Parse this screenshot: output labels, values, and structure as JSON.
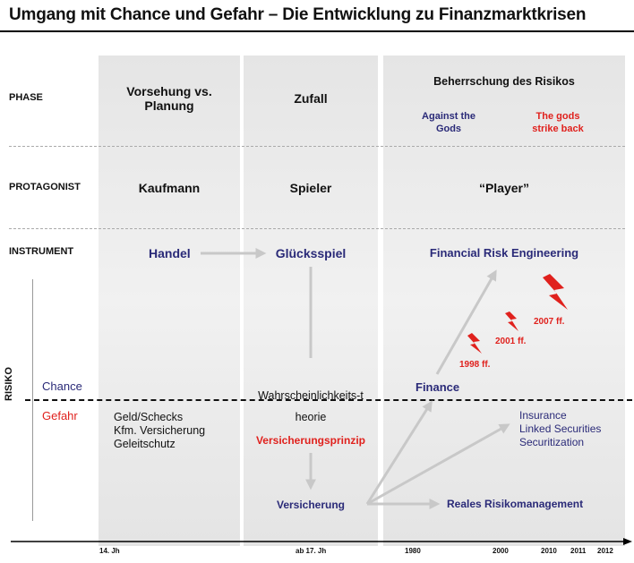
{
  "title": "Umgang mit Chance und Gefahr – Die Entwicklung zu Finanzmarktkrisen",
  "rows": {
    "phase": "PHASE",
    "protagonist": "PROTAGONIST",
    "instrument": "INSTRUMENT",
    "risiko": "RISIKO"
  },
  "columns": [
    {
      "phase": "Vorsehung vs. Planung",
      "protagonist": "Kaufmann",
      "instrument": "Handel",
      "gefahr_items": [
        "Geld/Schecks",
        "Kfm. Versicherung",
        "Geleitschutz"
      ]
    },
    {
      "phase": "Zufall",
      "protagonist": "Spieler",
      "instrument": "Glücksspiel",
      "theory": "Wahrscheinlichkeits-theorie",
      "principle": "Versicherungsprinzip",
      "outcome": "Versicherung"
    },
    {
      "phase": "Beherrschung des Risikos",
      "phase_sub_left": "Against the Gods",
      "phase_sub_right": "The gods strike back",
      "protagonist": "“Player”",
      "instrument": "Financial Risk Engineering",
      "finance": "Finance",
      "insurance": [
        "Insurance",
        "Linked Securities",
        "Securitization"
      ],
      "risk_mgmt": "Reales Risikomanagement",
      "crises": [
        "1998 ff.",
        "2001 ff.",
        "2007 ff."
      ]
    }
  ],
  "risk_axis": {
    "chance": "Chance",
    "gefahr": "Gefahr"
  },
  "timeline": [
    "14. Jh",
    "ab 17. Jh",
    "1980",
    "2000",
    "2010",
    "2011",
    "2012"
  ],
  "colors": {
    "navy": "#2a2a78",
    "red": "#e0211d",
    "arrow": "#c8c8c8",
    "panel": "#e9e9e9"
  }
}
